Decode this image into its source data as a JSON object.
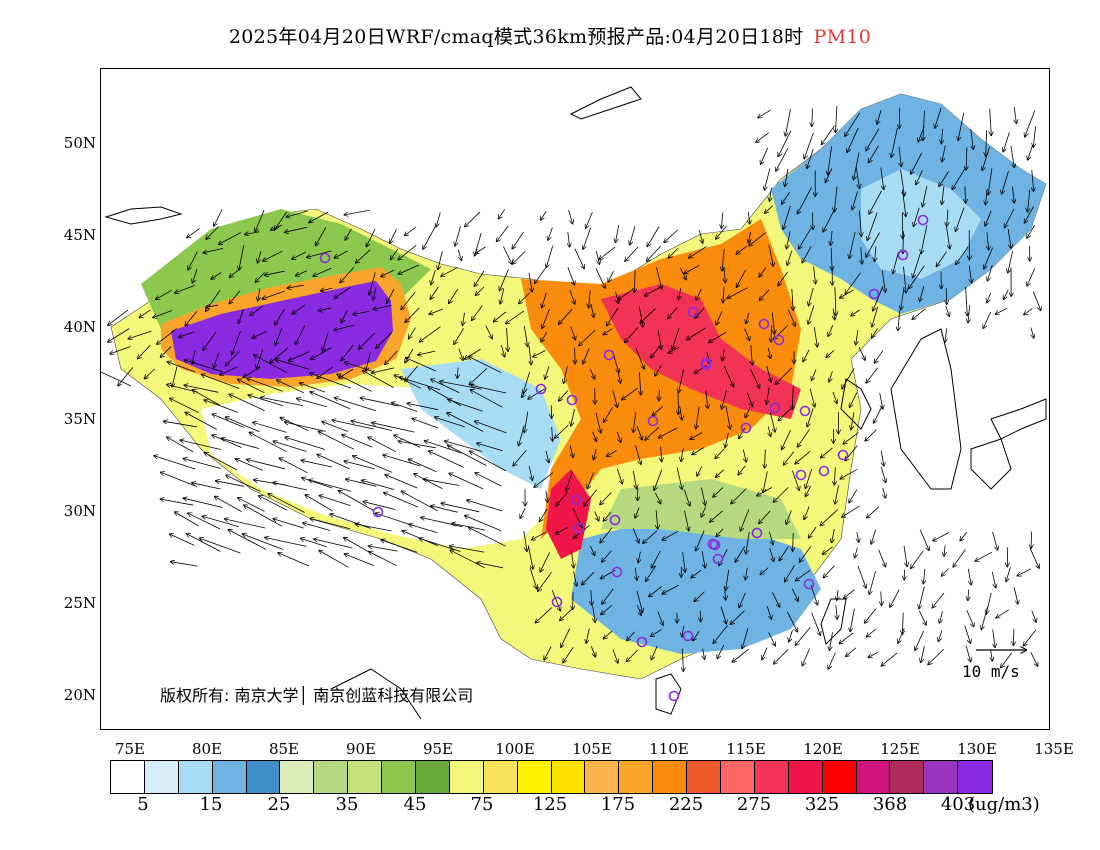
{
  "title": {
    "main": "2025年04月20日WRF/cmaq模式36km预报产品:04月20日18时",
    "pollutant": "PM10"
  },
  "axes": {
    "lat_labels": [
      "50N",
      "45N",
      "40N",
      "35N",
      "30N",
      "25N",
      "20N"
    ],
    "lon_labels": [
      "75E",
      "80E",
      "85E",
      "90E",
      "95E",
      "100E",
      "105E",
      "110E",
      "115E",
      "120E",
      "125E",
      "130E",
      "135E"
    ]
  },
  "copyright": "版权所有: 南京大学│ 南京创蓝科技有限公司",
  "wind_reference": {
    "label": "10 m/s"
  },
  "legend": {
    "colors": [
      "#ffffff",
      "#d6eefa",
      "#a8dcf4",
      "#6fb3e3",
      "#3f8ec8",
      "#dcecb8",
      "#b5d97f",
      "#c6e07a",
      "#8cc74e",
      "#6aa93b",
      "#f3f77a",
      "#f7e25a",
      "#fff200",
      "#ffe100",
      "#fbb44a",
      "#f9a42b",
      "#f98b0d",
      "#f05a28",
      "#ff6666",
      "#f33355",
      "#f0164a",
      "#ff0000",
      "#cf1480",
      "#ad2c5c",
      "#9b35c0",
      "#8a2be2"
    ],
    "labels": [
      "5",
      "15",
      "25",
      "35",
      "45",
      "75",
      "125",
      "175",
      "225",
      "275",
      "325",
      "368",
      "403"
    ],
    "unit": "(ug/m3)"
  }
}
